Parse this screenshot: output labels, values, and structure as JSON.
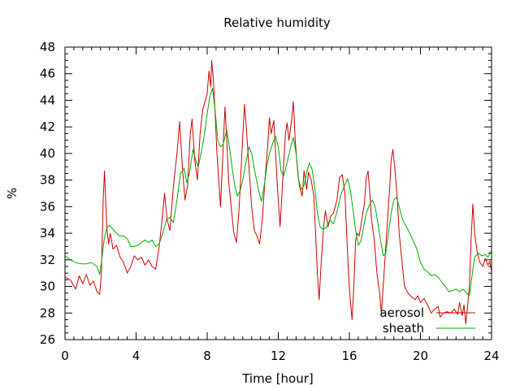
{
  "chart_data": {
    "type": "line",
    "title": "Relative humidity",
    "xlabel": "Time [hour]",
    "ylabel": "%",
    "xlim": [
      0,
      24
    ],
    "ylim": [
      26,
      48
    ],
    "xticks": [
      "0",
      "4",
      "8",
      "12",
      "16",
      "20",
      "24"
    ],
    "yticks": [
      "26",
      "28",
      "30",
      "32",
      "34",
      "36",
      "38",
      "40",
      "42",
      "44",
      "46",
      "48"
    ],
    "grid": false,
    "legend_position": "bottom-right",
    "series": [
      {
        "name": "aerosol",
        "color": "#cc0000",
        "points": [
          [
            0.0,
            30.7
          ],
          [
            0.3,
            30.5
          ],
          [
            0.6,
            29.8
          ],
          [
            0.8,
            30.8
          ],
          [
            1.0,
            30.2
          ],
          [
            1.2,
            30.9
          ],
          [
            1.4,
            30.1
          ],
          [
            1.6,
            30.4
          ],
          [
            1.8,
            29.6
          ],
          [
            1.95,
            29.4
          ],
          [
            2.05,
            31.0
          ],
          [
            2.15,
            36.5
          ],
          [
            2.22,
            38.7
          ],
          [
            2.35,
            34.5
          ],
          [
            2.45,
            33.2
          ],
          [
            2.55,
            34.0
          ],
          [
            2.7,
            32.8
          ],
          [
            2.9,
            33.1
          ],
          [
            3.1,
            32.2
          ],
          [
            3.3,
            31.8
          ],
          [
            3.5,
            31.0
          ],
          [
            3.7,
            31.5
          ],
          [
            3.9,
            32.3
          ],
          [
            4.1,
            32.0
          ],
          [
            4.3,
            32.2
          ],
          [
            4.5,
            31.6
          ],
          [
            4.7,
            32.0
          ],
          [
            4.9,
            31.5
          ],
          [
            5.1,
            31.3
          ],
          [
            5.3,
            33.0
          ],
          [
            5.5,
            35.5
          ],
          [
            5.6,
            37.0
          ],
          [
            5.75,
            35.0
          ],
          [
            5.9,
            34.2
          ],
          [
            6.1,
            37.5
          ],
          [
            6.3,
            40.0
          ],
          [
            6.45,
            42.4
          ],
          [
            6.6,
            39.0
          ],
          [
            6.75,
            36.5
          ],
          [
            6.9,
            37.6
          ],
          [
            7.05,
            41.5
          ],
          [
            7.15,
            42.6
          ],
          [
            7.3,
            39.5
          ],
          [
            7.45,
            38.0
          ],
          [
            7.6,
            41.5
          ],
          [
            7.75,
            43.3
          ],
          [
            7.9,
            44.0
          ],
          [
            8.0,
            44.5
          ],
          [
            8.1,
            46.2
          ],
          [
            8.2,
            45.0
          ],
          [
            8.25,
            47.0
          ],
          [
            8.35,
            45.5
          ],
          [
            8.45,
            43.0
          ],
          [
            8.55,
            40.0
          ],
          [
            8.65,
            38.0
          ],
          [
            8.75,
            36.0
          ],
          [
            8.9,
            40.5
          ],
          [
            9.0,
            43.5
          ],
          [
            9.1,
            41.0
          ],
          [
            9.2,
            38.0
          ],
          [
            9.35,
            36.0
          ],
          [
            9.5,
            34.0
          ],
          [
            9.65,
            33.3
          ],
          [
            9.8,
            36.0
          ],
          [
            9.95,
            40.0
          ],
          [
            10.1,
            43.7
          ],
          [
            10.2,
            42.0
          ],
          [
            10.35,
            39.0
          ],
          [
            10.5,
            36.0
          ],
          [
            10.65,
            34.2
          ],
          [
            10.8,
            33.8
          ],
          [
            10.95,
            33.2
          ],
          [
            11.1,
            35.0
          ],
          [
            11.25,
            38.0
          ],
          [
            11.4,
            40.5
          ],
          [
            11.5,
            42.7
          ],
          [
            11.6,
            41.5
          ],
          [
            11.75,
            42.5
          ],
          [
            11.85,
            40.0
          ],
          [
            11.95,
            37.5
          ],
          [
            12.1,
            34.5
          ],
          [
            12.25,
            38.0
          ],
          [
            12.4,
            41.5
          ],
          [
            12.5,
            42.3
          ],
          [
            12.6,
            41.0
          ],
          [
            12.75,
            42.5
          ],
          [
            12.85,
            43.9
          ],
          [
            12.95,
            41.0
          ],
          [
            13.1,
            38.5
          ],
          [
            13.2,
            37.5
          ],
          [
            13.35,
            36.8
          ],
          [
            13.45,
            38.7
          ],
          [
            13.6,
            37.3
          ],
          [
            13.7,
            38.6
          ],
          [
            13.85,
            38.0
          ],
          [
            14.0,
            36.8
          ],
          [
            14.1,
            34.0
          ],
          [
            14.2,
            31.0
          ],
          [
            14.3,
            29.0
          ],
          [
            14.4,
            31.5
          ],
          [
            14.55,
            34.5
          ],
          [
            14.65,
            35.7
          ],
          [
            14.8,
            34.5
          ],
          [
            14.95,
            35.3
          ],
          [
            15.1,
            35.5
          ],
          [
            15.3,
            36.5
          ],
          [
            15.45,
            38.2
          ],
          [
            15.6,
            38.4
          ],
          [
            15.75,
            37.0
          ],
          [
            15.85,
            34.0
          ],
          [
            15.95,
            31.0
          ],
          [
            16.05,
            29.0
          ],
          [
            16.15,
            27.5
          ],
          [
            16.25,
            30.0
          ],
          [
            16.35,
            33.5
          ],
          [
            16.45,
            34.0
          ],
          [
            16.55,
            33.8
          ],
          [
            16.7,
            35.0
          ],
          [
            16.85,
            36.3
          ],
          [
            16.95,
            38.2
          ],
          [
            17.05,
            38.7
          ],
          [
            17.15,
            37.0
          ],
          [
            17.25,
            35.0
          ],
          [
            17.4,
            33.5
          ],
          [
            17.55,
            31.0
          ],
          [
            17.7,
            29.5
          ],
          [
            17.8,
            28.0
          ],
          [
            17.95,
            31.0
          ],
          [
            18.1,
            34.0
          ],
          [
            18.25,
            37.0
          ],
          [
            18.35,
            39.5
          ],
          [
            18.45,
            40.3
          ],
          [
            18.55,
            39.0
          ],
          [
            18.7,
            36.5
          ],
          [
            18.8,
            34.0
          ],
          [
            18.95,
            32.0
          ],
          [
            19.1,
            30.0
          ],
          [
            19.3,
            29.5
          ],
          [
            19.5,
            29.2
          ],
          [
            19.7,
            29.0
          ],
          [
            19.85,
            29.3
          ],
          [
            20.0,
            28.8
          ],
          [
            20.2,
            29.1
          ],
          [
            20.4,
            28.6
          ],
          [
            20.6,
            28.0
          ],
          [
            20.8,
            28.3
          ],
          [
            21.0,
            28.5
          ],
          [
            21.1,
            27.7
          ],
          [
            21.3,
            28.0
          ],
          [
            21.5,
            28.1
          ],
          [
            21.7,
            28.0
          ],
          [
            21.9,
            28.3
          ],
          [
            22.1,
            27.9
          ],
          [
            22.2,
            28.8
          ],
          [
            22.35,
            27.8
          ],
          [
            22.45,
            28.6
          ],
          [
            22.55,
            27.2
          ],
          [
            22.65,
            28.5
          ],
          [
            22.75,
            30.0
          ],
          [
            22.85,
            33.5
          ],
          [
            22.95,
            36.2
          ],
          [
            23.05,
            34.0
          ],
          [
            23.2,
            32.5
          ],
          [
            23.35,
            31.8
          ],
          [
            23.5,
            31.5
          ],
          [
            23.65,
            32.1
          ],
          [
            23.8,
            31.6
          ],
          [
            23.9,
            31.9
          ],
          [
            24.0,
            31.1
          ]
        ]
      },
      {
        "name": "sheath",
        "color": "#00aa00",
        "points": [
          [
            0.0,
            32.3
          ],
          [
            0.3,
            32.0
          ],
          [
            0.6,
            31.8
          ],
          [
            0.9,
            31.7
          ],
          [
            1.2,
            31.7
          ],
          [
            1.5,
            31.8
          ],
          [
            1.8,
            31.5
          ],
          [
            1.95,
            30.9
          ],
          [
            2.05,
            31.8
          ],
          [
            2.2,
            33.5
          ],
          [
            2.35,
            34.4
          ],
          [
            2.5,
            34.6
          ],
          [
            2.7,
            34.3
          ],
          [
            2.9,
            34.0
          ],
          [
            3.1,
            33.8
          ],
          [
            3.3,
            33.8
          ],
          [
            3.5,
            33.6
          ],
          [
            3.7,
            33.0
          ],
          [
            3.9,
            33.0
          ],
          [
            4.1,
            33.1
          ],
          [
            4.3,
            33.3
          ],
          [
            4.5,
            33.5
          ],
          [
            4.7,
            33.3
          ],
          [
            4.9,
            33.5
          ],
          [
            5.1,
            33.0
          ],
          [
            5.3,
            33.2
          ],
          [
            5.5,
            34.0
          ],
          [
            5.7,
            35.0
          ],
          [
            5.9,
            35.2
          ],
          [
            6.1,
            34.8
          ],
          [
            6.3,
            36.5
          ],
          [
            6.5,
            38.5
          ],
          [
            6.7,
            38.9
          ],
          [
            6.85,
            37.8
          ],
          [
            7.0,
            38.5
          ],
          [
            7.2,
            40.3
          ],
          [
            7.35,
            39.5
          ],
          [
            7.5,
            39.0
          ],
          [
            7.7,
            40.3
          ],
          [
            7.85,
            41.5
          ],
          [
            8.0,
            43.0
          ],
          [
            8.15,
            44.3
          ],
          [
            8.3,
            44.9
          ],
          [
            8.45,
            43.2
          ],
          [
            8.6,
            41.0
          ],
          [
            8.75,
            40.5
          ],
          [
            8.9,
            40.7
          ],
          [
            9.1,
            41.8
          ],
          [
            9.25,
            40.5
          ],
          [
            9.4,
            39.0
          ],
          [
            9.55,
            37.6
          ],
          [
            9.7,
            36.8
          ],
          [
            9.85,
            37.2
          ],
          [
            10.0,
            38.0
          ],
          [
            10.2,
            39.5
          ],
          [
            10.35,
            40.5
          ],
          [
            10.5,
            40.0
          ],
          [
            10.7,
            38.5
          ],
          [
            10.9,
            37.2
          ],
          [
            11.05,
            36.4
          ],
          [
            11.2,
            37.5
          ],
          [
            11.35,
            39.0
          ],
          [
            11.5,
            40.0
          ],
          [
            11.7,
            40.8
          ],
          [
            11.85,
            41.3
          ],
          [
            12.0,
            40.5
          ],
          [
            12.15,
            38.7
          ],
          [
            12.3,
            38.3
          ],
          [
            12.5,
            39.3
          ],
          [
            12.7,
            40.5
          ],
          [
            12.85,
            41.2
          ],
          [
            13.0,
            40.0
          ],
          [
            13.15,
            38.0
          ],
          [
            13.3,
            37.3
          ],
          [
            13.45,
            37.6
          ],
          [
            13.6,
            38.6
          ],
          [
            13.75,
            39.3
          ],
          [
            13.9,
            38.8
          ],
          [
            14.05,
            37.5
          ],
          [
            14.2,
            35.5
          ],
          [
            14.35,
            34.5
          ],
          [
            14.5,
            34.3
          ],
          [
            14.7,
            34.4
          ],
          [
            14.9,
            35.0
          ],
          [
            15.1,
            34.7
          ],
          [
            15.3,
            35.6
          ],
          [
            15.5,
            36.8
          ],
          [
            15.7,
            37.5
          ],
          [
            15.9,
            38.1
          ],
          [
            16.05,
            37.3
          ],
          [
            16.2,
            35.8
          ],
          [
            16.35,
            34.2
          ],
          [
            16.5,
            33.1
          ],
          [
            16.65,
            33.4
          ],
          [
            16.8,
            34.5
          ],
          [
            16.95,
            35.5
          ],
          [
            17.15,
            36.2
          ],
          [
            17.3,
            36.5
          ],
          [
            17.45,
            36.0
          ],
          [
            17.6,
            34.8
          ],
          [
            17.75,
            33.5
          ],
          [
            17.9,
            32.3
          ],
          [
            18.05,
            32.5
          ],
          [
            18.2,
            34.0
          ],
          [
            18.35,
            35.5
          ],
          [
            18.5,
            36.5
          ],
          [
            18.65,
            36.7
          ],
          [
            18.8,
            36.0
          ],
          [
            19.0,
            35.0
          ],
          [
            19.2,
            34.5
          ],
          [
            19.4,
            34.0
          ],
          [
            19.6,
            33.4
          ],
          [
            19.8,
            32.8
          ],
          [
            20.0,
            31.8
          ],
          [
            20.2,
            31.3
          ],
          [
            20.4,
            31.1
          ],
          [
            20.6,
            30.8
          ],
          [
            20.8,
            30.9
          ],
          [
            21.0,
            30.7
          ],
          [
            21.2,
            30.3
          ],
          [
            21.4,
            30.0
          ],
          [
            21.6,
            29.6
          ],
          [
            21.8,
            29.7
          ],
          [
            22.0,
            29.8
          ],
          [
            22.2,
            29.6
          ],
          [
            22.4,
            29.8
          ],
          [
            22.6,
            29.5
          ],
          [
            22.75,
            29.3
          ],
          [
            22.9,
            30.8
          ],
          [
            23.05,
            32.2
          ],
          [
            23.25,
            32.5
          ],
          [
            23.45,
            32.3
          ],
          [
            23.65,
            32.4
          ],
          [
            23.8,
            32.2
          ],
          [
            24.0,
            32.7
          ]
        ]
      }
    ]
  }
}
